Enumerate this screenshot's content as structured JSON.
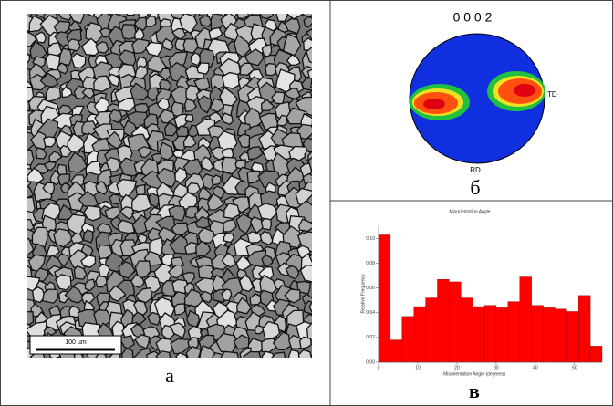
{
  "panels": {
    "micrograph": {
      "label": "а",
      "scale_bar": "100 µm"
    },
    "pole_figure": {
      "label": "б",
      "title": "0 0 0 2",
      "td": "TD",
      "rd": "RD"
    },
    "histogram": {
      "label": "в"
    }
  },
  "chart_data": {
    "type": "histogram",
    "title": "Misorientation Angle",
    "x_label": "Misorientation Angle (degrees)",
    "y_label": "Relative Frequency",
    "bins": [
      0,
      3,
      6,
      9,
      12,
      15,
      18,
      21,
      24,
      27,
      30,
      33,
      36,
      39,
      42,
      45,
      48,
      51,
      54,
      57
    ],
    "values": [
      0.103,
      0.018,
      0.037,
      0.045,
      0.052,
      0.067,
      0.065,
      0.052,
      0.045,
      0.046,
      0.044,
      0.049,
      0.069,
      0.046,
      0.044,
      0.043,
      0.041,
      0.054,
      0.013
    ],
    "color": "#ff0000",
    "xlim": [
      0,
      57
    ],
    "xticks": [
      0,
      10,
      20,
      30,
      40,
      50
    ],
    "ylim": [
      0,
      0.11
    ],
    "yticks": [
      {
        "value": 0,
        "label": "0.00"
      },
      {
        "value": 0.02,
        "label": "0.02"
      },
      {
        "value": 0.04,
        "label": "0.04"
      },
      {
        "value": 0.06,
        "label": "0.06"
      },
      {
        "value": 0.08,
        "label": "0.08"
      },
      {
        "value": 0.1,
        "label": "0.10"
      }
    ]
  }
}
